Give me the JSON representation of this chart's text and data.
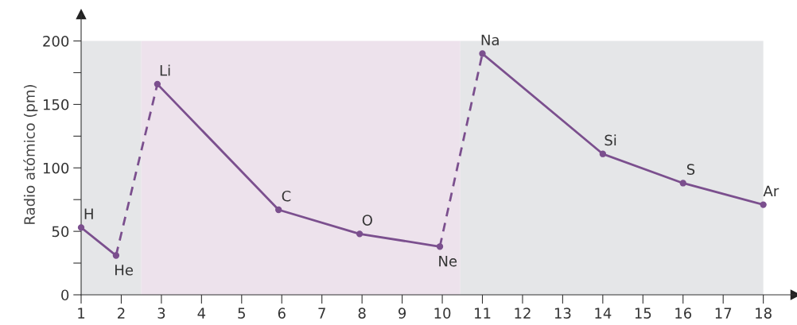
{
  "chart_data": {
    "type": "line",
    "ylabel": "Radio atómico (pm)",
    "xlim": [
      1,
      18.8
    ],
    "ylim": [
      0,
      221
    ],
    "xticks": [
      1,
      2,
      3,
      4,
      5,
      6,
      7,
      8,
      9,
      10,
      11,
      12,
      13,
      14,
      15,
      16,
      17,
      18
    ],
    "yticks": [
      0,
      {
        "value": 25,
        "label": null
      },
      50,
      {
        "value": 75,
        "label": null
      },
      100,
      {
        "value": 125,
        "label": null
      },
      150,
      {
        "value": 175,
        "label": null
      },
      200
    ],
    "grid": false,
    "legend": false,
    "marker": "circle",
    "series": [
      {
        "color": "#7b4f8e",
        "line_style": "solid",
        "x": [
          1,
          1.87
        ],
        "values": [
          53,
          31
        ]
      },
      {
        "color": "#7b4f8e",
        "line_style": "dashed",
        "marker": "none",
        "x": [
          1.87,
          2.9
        ],
        "values": [
          31,
          166
        ]
      },
      {
        "color": "#7b4f8e",
        "line_style": "solid",
        "x": [
          2.9,
          5.92,
          7.94,
          9.94
        ],
        "values": [
          166,
          67,
          48,
          38
        ]
      },
      {
        "color": "#7b4f8e",
        "line_style": "dashed",
        "marker": "none",
        "x": [
          9.94,
          11
        ],
        "values": [
          38,
          190
        ]
      },
      {
        "color": "#7b4f8e",
        "line_style": "solid",
        "x": [
          11,
          14,
          16,
          18
        ],
        "values": [
          190,
          111,
          88,
          71
        ]
      }
    ],
    "bands": [
      {
        "axis": "x",
        "from": 1,
        "to": 2.5,
        "color": "#e5e6e8",
        "label": null
      },
      {
        "axis": "x",
        "from": 2.5,
        "to": 10.45,
        "color": "#ede2ec",
        "label": null
      },
      {
        "axis": "x",
        "from": 10.45,
        "to": 18,
        "color": "#e5e6e8",
        "label": null
      }
    ],
    "annotations": [
      {
        "text": "H",
        "x": 1,
        "y": 53
      },
      {
        "text": "He",
        "x": 1.87,
        "y": 31
      },
      {
        "text": "Li",
        "x": 2.9,
        "y": 166
      },
      {
        "text": "C",
        "x": 5.92,
        "y": 67
      },
      {
        "text": "O",
        "x": 7.94,
        "y": 48
      },
      {
        "text": "Ne",
        "x": 9.94,
        "y": 38
      },
      {
        "text": "Na",
        "x": 11,
        "y": 190
      },
      {
        "text": "Si",
        "x": 14,
        "y": 111
      },
      {
        "text": "S",
        "x": 16,
        "y": 88
      },
      {
        "text": "Ar",
        "x": 18,
        "y": 71
      }
    ]
  }
}
